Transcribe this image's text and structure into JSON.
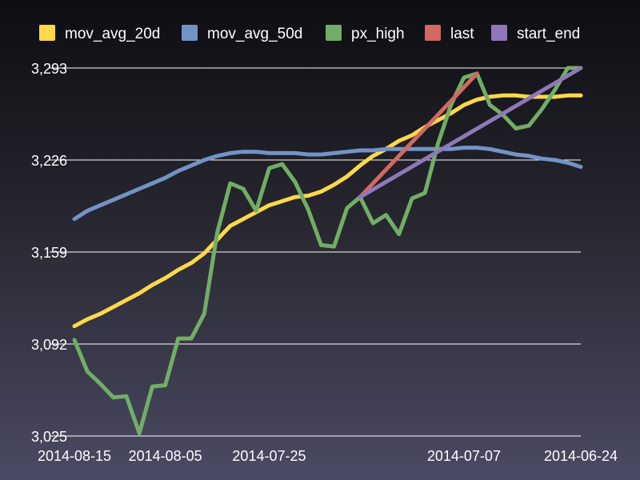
{
  "chart_data": {
    "type": "line",
    "title": "",
    "xlabel": "",
    "ylabel": "",
    "ylim": [
      3025,
      3293
    ],
    "yticks": [
      3025,
      3092,
      3159,
      3226,
      3293
    ],
    "ytick_labels": [
      "3,025",
      "3,092",
      "3,159",
      "3,226",
      "3,293"
    ],
    "x_reversed": true,
    "x_count": 40,
    "xtick_labels": [
      {
        "index": 0,
        "label": "2014-08-15"
      },
      {
        "index": 7,
        "label": "2014-08-05"
      },
      {
        "index": 15,
        "label": "2014-07-25"
      },
      {
        "index": 30,
        "label": "2014-07-07"
      },
      {
        "index": 39,
        "label": "2014-06-24"
      }
    ],
    "legend_position": "top",
    "grid": true,
    "series": [
      {
        "name": "mov_avg_20d",
        "color": "#ffd84a",
        "x": [
          0,
          1,
          2,
          3,
          4,
          5,
          6,
          7,
          8,
          9,
          10,
          11,
          12,
          13,
          14,
          15,
          16,
          17,
          18,
          19,
          20,
          21,
          22,
          23,
          24,
          25,
          26,
          27,
          28,
          29,
          30,
          31,
          32,
          33,
          34,
          35,
          36,
          37,
          38,
          39
        ],
        "values": [
          3105,
          3110,
          3114,
          3119,
          3124,
          3129,
          3135,
          3140,
          3146,
          3151,
          3158,
          3168,
          3178,
          3183,
          3188,
          3193,
          3196,
          3199,
          3200,
          3203,
          3208,
          3214,
          3222,
          3229,
          3234,
          3240,
          3244,
          3250,
          3255,
          3260,
          3266,
          3270,
          3272,
          3273,
          3273,
          3272,
          3272,
          3272,
          3273,
          3273
        ]
      },
      {
        "name": "mov_avg_50d",
        "color": "#7393c6",
        "x": [
          0,
          1,
          2,
          3,
          4,
          5,
          6,
          7,
          8,
          9,
          10,
          11,
          12,
          13,
          14,
          15,
          16,
          17,
          18,
          19,
          20,
          21,
          22,
          23,
          24,
          25,
          26,
          27,
          28,
          29,
          30,
          31,
          32,
          33,
          34,
          35,
          36,
          37,
          38,
          39
        ],
        "values": [
          3183,
          3189,
          3193,
          3197,
          3201,
          3205,
          3209,
          3213,
          3218,
          3222,
          3226,
          3229,
          3231,
          3232,
          3232,
          3231,
          3231,
          3231,
          3230,
          3230,
          3231,
          3232,
          3233,
          3233,
          3234,
          3234,
          3234,
          3234,
          3234,
          3234,
          3235,
          3235,
          3234,
          3232,
          3230,
          3229,
          3227,
          3226,
          3224,
          3221
        ]
      },
      {
        "name": "px_high",
        "color": "#72ad67",
        "x": [
          0,
          1,
          2,
          3,
          4,
          5,
          6,
          7,
          8,
          9,
          10,
          11,
          12,
          13,
          14,
          15,
          16,
          17,
          18,
          19,
          20,
          21,
          22,
          23,
          24,
          25,
          26,
          27,
          28,
          29,
          30,
          31,
          32,
          33,
          34,
          35,
          36,
          37,
          38,
          39
        ],
        "values": [
          3095,
          3072,
          3063,
          3053,
          3054,
          3027,
          3061,
          3062,
          3096,
          3096,
          3114,
          3173,
          3209,
          3205,
          3189,
          3220,
          3223,
          3210,
          3190,
          3164,
          3163,
          3191,
          3199,
          3180,
          3186,
          3172,
          3198,
          3202,
          3238,
          3266,
          3286,
          3289,
          3266,
          3259,
          3249,
          3251,
          3263,
          3277,
          3293,
          3293
        ]
      },
      {
        "name": "last",
        "color": "#d0695f",
        "x": [
          22,
          31
        ],
        "values": [
          3199,
          3289
        ]
      },
      {
        "name": "start_end",
        "color": "#8f78b8",
        "x": [
          22,
          39
        ],
        "values": [
          3199,
          3293
        ]
      }
    ]
  }
}
